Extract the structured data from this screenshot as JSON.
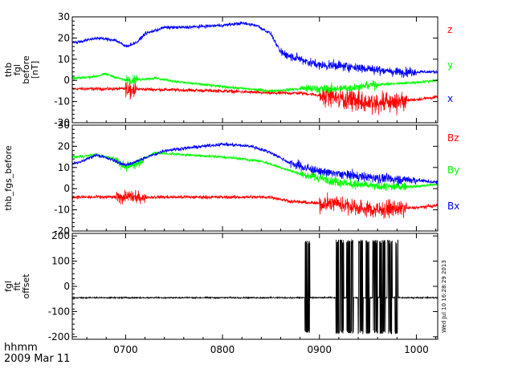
{
  "chart_data": [
    {
      "type": "line",
      "ylabel_lines": [
        "thb",
        "fgl",
        "before",
        "[nT]"
      ],
      "ylim": [
        -20,
        30
      ],
      "yticks": [
        -20,
        -10,
        0,
        10,
        20,
        30
      ],
      "series": [
        {
          "name": "z",
          "color": "#ff0000",
          "noise": 1.2,
          "points": [
            [
              650,
              -4
            ],
            [
              700,
              -4
            ],
            [
              750,
              -4.5
            ],
            [
              800,
              -5
            ],
            [
              850,
              -6
            ],
            [
              880,
              -6
            ],
            [
              900,
              -7
            ],
            [
              920,
              -8
            ],
            [
              940,
              -10
            ],
            [
              960,
              -11
            ],
            [
              980,
              -10
            ],
            [
              1000,
              -9
            ],
            [
              1020,
              -8
            ]
          ],
          "spikes": [
            [
              700,
              712,
              5
            ],
            [
              900,
              990,
              7
            ]
          ]
        },
        {
          "name": "y",
          "color": "#00ff00",
          "noise": 1,
          "points": [
            [
              650,
              1
            ],
            [
              670,
              2
            ],
            [
              680,
              3
            ],
            [
              700,
              0
            ],
            [
              730,
              1
            ],
            [
              760,
              -1
            ],
            [
              800,
              -3
            ],
            [
              850,
              -5
            ],
            [
              880,
              -4
            ],
            [
              920,
              -4
            ],
            [
              960,
              -2
            ],
            [
              1000,
              -1
            ],
            [
              1020,
              0
            ]
          ],
          "spikes": [
            [
              700,
              712,
              3
            ],
            [
              880,
              960,
              3
            ]
          ]
        },
        {
          "name": "x",
          "color": "#0000ff",
          "noise": 1.2,
          "points": [
            [
              650,
              18
            ],
            [
              670,
              20
            ],
            [
              690,
              19
            ],
            [
              700,
              16
            ],
            [
              712,
              18
            ],
            [
              720,
              22
            ],
            [
              740,
              25
            ],
            [
              760,
              25
            ],
            [
              800,
              26
            ],
            [
              820,
              27
            ],
            [
              835,
              26
            ],
            [
              850,
              22
            ],
            [
              860,
              13
            ],
            [
              880,
              10
            ],
            [
              900,
              7
            ],
            [
              920,
              7
            ],
            [
              940,
              6
            ],
            [
              960,
              5
            ],
            [
              980,
              4
            ],
            [
              1000,
              4
            ],
            [
              1020,
              4
            ]
          ],
          "spikes": [
            [
              860,
              1000,
              3
            ]
          ]
        }
      ]
    },
    {
      "type": "line",
      "ylabel_lines": [
        "thb_fgs_before"
      ],
      "ylim": [
        -20,
        30
      ],
      "yticks": [
        -20,
        -10,
        0,
        10,
        20,
        30
      ],
      "series": [
        {
          "name": "Bz",
          "color": "#ff0000",
          "noise": 1.2,
          "points": [
            [
              650,
              -4
            ],
            [
              700,
              -4
            ],
            [
              750,
              -4
            ],
            [
              800,
              -4
            ],
            [
              850,
              -4
            ],
            [
              870,
              -6
            ],
            [
              900,
              -7
            ],
            [
              920,
              -7
            ],
            [
              940,
              -9
            ],
            [
              960,
              -10
            ],
            [
              1000,
              -9
            ],
            [
              1020,
              -8
            ]
          ],
          "spikes": [
            [
              690,
              720,
              4
            ],
            [
              900,
              990,
              6
            ]
          ]
        },
        {
          "name": "By",
          "color": "#00ff00",
          "noise": 1,
          "points": [
            [
              650,
              15
            ],
            [
              670,
              16
            ],
            [
              690,
              14
            ],
            [
              700,
              10
            ],
            [
              712,
              12
            ],
            [
              730,
              17
            ],
            [
              760,
              16
            ],
            [
              800,
              15
            ],
            [
              840,
              13
            ],
            [
              860,
              10
            ],
            [
              880,
              7
            ],
            [
              900,
              5
            ],
            [
              920,
              3
            ],
            [
              940,
              2
            ],
            [
              960,
              1
            ],
            [
              1000,
              1
            ],
            [
              1020,
              2
            ]
          ],
          "spikes": [
            [
              690,
              720,
              3
            ],
            [
              880,
              990,
              3
            ]
          ]
        },
        {
          "name": "Bx",
          "color": "#0000ff",
          "noise": 1.2,
          "points": [
            [
              650,
              12
            ],
            [
              670,
              16
            ],
            [
              690,
              13
            ],
            [
              700,
              11
            ],
            [
              712,
              13
            ],
            [
              740,
              18
            ],
            [
              760,
              19
            ],
            [
              800,
              21
            ],
            [
              830,
              20
            ],
            [
              850,
              17
            ],
            [
              870,
              12
            ],
            [
              900,
              8
            ],
            [
              920,
              7
            ],
            [
              940,
              6
            ],
            [
              960,
              5
            ],
            [
              1000,
              4
            ],
            [
              1020,
              3
            ]
          ],
          "spikes": [
            [
              870,
              1000,
              3
            ]
          ]
        }
      ]
    },
    {
      "type": "line",
      "ylabel_lines": [
        "fgl",
        "fit",
        "offset"
      ],
      "ylim": [
        -210,
        210
      ],
      "yticks": [
        -200,
        -100,
        0,
        100,
        200
      ],
      "series": [
        {
          "name": "",
          "color": "#000000",
          "baseline": -45,
          "noise": 4,
          "bursts": [
            [
              885,
              890
            ],
            [
              917,
              925
            ],
            [
              928,
              935
            ],
            [
              940,
              945
            ],
            [
              948,
              952
            ],
            [
              955,
              960
            ],
            [
              962,
              968
            ],
            [
              970,
              975
            ],
            [
              978,
              981
            ]
          ],
          "burst_range": [
            -190,
            185
          ]
        }
      ]
    }
  ],
  "x_axis": {
    "xlim": [
      645,
      1022
    ],
    "tick_values": [
      700,
      800,
      900,
      1000
    ],
    "tick_labels": [
      "0700",
      "0800",
      "0900",
      "1000"
    ],
    "corner_label_1": "hhmm",
    "corner_label_2": "2009 Mar 11"
  },
  "timestamp": "Wed Jul 10 16:28:29 2013"
}
